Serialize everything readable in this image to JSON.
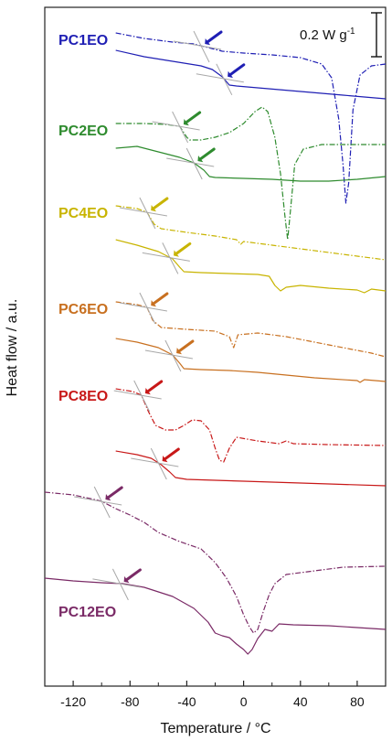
{
  "chart_data": {
    "type": "line",
    "title": "",
    "xlabel": "Temperature / °C",
    "ylabel": "Heat flow / a.u.",
    "xlim": [
      -140,
      100
    ],
    "xticks": [
      -120,
      -80,
      -40,
      0,
      40,
      80
    ],
    "xtick_labels": [
      "-120",
      "-80",
      "-40",
      "0",
      "40",
      "80"
    ],
    "y_axis_ticks": false,
    "grid": false,
    "scale_bar": {
      "label": "0.2 W g",
      "superscript": "-1"
    },
    "series": [
      {
        "name": "PC1EO",
        "color": "#1f1fb4",
        "traces": [
          {
            "style": "dashdot",
            "x_range": [
              -90,
              100
            ],
            "glass_transition_x": -30,
            "points": [
              [
                -90,
                36
              ],
              [
                -70,
                42
              ],
              [
                -50,
                46
              ],
              [
                -35,
                48
              ],
              [
                -25,
                52
              ],
              [
                -15,
                56
              ],
              [
                0,
                58
              ],
              [
                20,
                60
              ],
              [
                40,
                63
              ],
              [
                55,
                70
              ],
              [
                62,
                85
              ],
              [
                67,
                130
              ],
              [
                70,
                180
              ],
              [
                72,
                222
              ],
              [
                74,
                200
              ],
              [
                77,
                120
              ],
              [
                82,
                82
              ],
              [
                90,
                72
              ],
              [
                100,
                70
              ]
            ]
          },
          {
            "style": "solid",
            "x_range": [
              -90,
              100
            ],
            "glass_transition_x": -14,
            "points": [
              [
                -90,
                55
              ],
              [
                -70,
                62
              ],
              [
                -50,
                67
              ],
              [
                -30,
                72
              ],
              [
                -22,
                76
              ],
              [
                -15,
                84
              ],
              [
                -10,
                93
              ],
              [
                -5,
                94
              ],
              [
                10,
                96
              ],
              [
                40,
                100
              ],
              [
                70,
                104
              ],
              [
                100,
                108
              ]
            ]
          }
        ]
      },
      {
        "name": "PC2EO",
        "color": "#2e8b2e",
        "traces": [
          {
            "style": "dashdot",
            "x_range": [
              -90,
              100
            ],
            "glass_transition_x": -45,
            "points": [
              [
                -90,
                135
              ],
              [
                -70,
                135
              ],
              [
                -55,
                136
              ],
              [
                -45,
                138
              ],
              [
                -40,
                150
              ],
              [
                -38,
                153
              ],
              [
                -30,
                153
              ],
              [
                -20,
                150
              ],
              [
                -10,
                145
              ],
              [
                0,
                135
              ],
              [
                8,
                122
              ],
              [
                13,
                117
              ],
              [
                17,
                122
              ],
              [
                22,
                150
              ],
              [
                26,
                190
              ],
              [
                29,
                235
              ],
              [
                31,
                262
              ],
              [
                33,
                230
              ],
              [
                36,
                180
              ],
              [
                42,
                163
              ],
              [
                55,
                158
              ],
              [
                70,
                158
              ],
              [
                100,
                158
              ]
            ]
          },
          {
            "style": "solid",
            "x_range": [
              -90,
              100
            ],
            "glass_transition_x": -35,
            "points": [
              [
                -90,
                162
              ],
              [
                -75,
                160
              ],
              [
                -60,
                166
              ],
              [
                -45,
                172
              ],
              [
                -35,
                178
              ],
              [
                -28,
                186
              ],
              [
                -24,
                193
              ],
              [
                -20,
                194
              ],
              [
                0,
                195
              ],
              [
                20,
                196
              ],
              [
                40,
                198
              ],
              [
                60,
                198
              ],
              [
                80,
                196
              ],
              [
                100,
                193
              ]
            ]
          }
        ]
      },
      {
        "name": "PC4EO",
        "color": "#c8b400",
        "traces": [
          {
            "style": "dashdot",
            "x_range": [
              -90,
              100
            ],
            "glass_transition_x": -68,
            "points": [
              [
                -90,
                225
              ],
              [
                -75,
                228
              ],
              [
                -68,
                232
              ],
              [
                -63,
                245
              ],
              [
                -58,
                250
              ],
              [
                -40,
                254
              ],
              [
                -20,
                258
              ],
              [
                -5,
                262
              ],
              [
                -2,
                267
              ],
              [
                0,
                264
              ],
              [
                20,
                268
              ],
              [
                40,
                272
              ],
              [
                60,
                276
              ],
              [
                80,
                280
              ],
              [
                100,
                284
              ]
            ]
          },
          {
            "style": "solid",
            "x_range": [
              -90,
              100
            ],
            "glass_transition_x": -52,
            "points": [
              [
                -90,
                262
              ],
              [
                -75,
                268
              ],
              [
                -60,
                275
              ],
              [
                -50,
                283
              ],
              [
                -45,
                292
              ],
              [
                -42,
                297
              ],
              [
                -30,
                298
              ],
              [
                -10,
                299
              ],
              [
                10,
                300
              ],
              [
                18,
                302
              ],
              [
                22,
                312
              ],
              [
                26,
                318
              ],
              [
                30,
                314
              ],
              [
                40,
                312
              ],
              [
                60,
                315
              ],
              [
                80,
                317
              ],
              [
                85,
                320
              ],
              [
                90,
                316
              ],
              [
                100,
                318
              ]
            ]
          }
        ]
      },
      {
        "name": "PC6EO",
        "color": "#c87020",
        "traces": [
          {
            "style": "dashdot",
            "x_range": [
              -90,
              100
            ],
            "glass_transition_x": -68,
            "points": [
              [
                -90,
                330
              ],
              [
                -75,
                333
              ],
              [
                -68,
                336
              ],
              [
                -64,
                350
              ],
              [
                -58,
                358
              ],
              [
                -40,
                360
              ],
              [
                -20,
                362
              ],
              [
                -10,
                368
              ],
              [
                -7,
                380
              ],
              [
                -4,
                366
              ],
              [
                10,
                364
              ],
              [
                30,
                368
              ],
              [
                50,
                374
              ],
              [
                70,
                380
              ],
              [
                90,
                386
              ],
              [
                100,
                390
              ]
            ]
          },
          {
            "style": "solid",
            "x_range": [
              -90,
              100
            ],
            "glass_transition_x": -50,
            "points": [
              [
                -90,
                370
              ],
              [
                -75,
                374
              ],
              [
                -60,
                380
              ],
              [
                -50,
                388
              ],
              [
                -45,
                397
              ],
              [
                -42,
                403
              ],
              [
                -30,
                404
              ],
              [
                -10,
                405
              ],
              [
                10,
                407
              ],
              [
                30,
                410
              ],
              [
                50,
                413
              ],
              [
                80,
                416
              ],
              [
                82,
                418
              ],
              [
                85,
                415
              ],
              [
                100,
                417
              ]
            ]
          }
        ]
      },
      {
        "name": "PC8EO",
        "color": "#c81818",
        "traces": [
          {
            "style": "dashdot",
            "x_range": [
              -90,
              100
            ],
            "glass_transition_x": -72,
            "points": [
              [
                -90,
                425
              ],
              [
                -78,
                428
              ],
              [
                -72,
                432
              ],
              [
                -67,
                450
              ],
              [
                -62,
                465
              ],
              [
                -55,
                470
              ],
              [
                -48,
                470
              ],
              [
                -42,
                465
              ],
              [
                -36,
                459
              ],
              [
                -30,
                460
              ],
              [
                -24,
                470
              ],
              [
                -20,
                490
              ],
              [
                -17,
                503
              ],
              [
                -14,
                505
              ],
              [
                -10,
                490
              ],
              [
                -5,
                478
              ],
              [
                10,
                482
              ],
              [
                25,
                485
              ],
              [
                30,
                482
              ],
              [
                35,
                485
              ],
              [
                60,
                486
              ],
              [
                100,
                487
              ]
            ]
          },
          {
            "style": "solid",
            "x_range": [
              -90,
              100
            ],
            "glass_transition_x": -60,
            "points": [
              [
                -90,
                493
              ],
              [
                -75,
                497
              ],
              [
                -65,
                501
              ],
              [
                -58,
                508
              ],
              [
                -52,
                516
              ],
              [
                -48,
                522
              ],
              [
                -40,
                524
              ],
              [
                -20,
                525
              ],
              [
                0,
                526
              ],
              [
                20,
                527
              ],
              [
                60,
                529
              ],
              [
                100,
                531
              ]
            ]
          }
        ]
      },
      {
        "name": "PC12EO",
        "color": "#7a2a66",
        "traces": [
          {
            "style": "dashdot",
            "x_range": [
              -140,
              100
            ],
            "glass_transition_x": -100,
            "points": [
              [
                -140,
                538
              ],
              [
                -120,
                541
              ],
              [
                -105,
                546
              ],
              [
                -100,
                548
              ],
              [
                -90,
                556
              ],
              [
                -80,
                563
              ],
              [
                -70,
                571
              ],
              [
                -60,
                582
              ],
              [
                -45,
                592
              ],
              [
                -30,
                600
              ],
              [
                -20,
                615
              ],
              [
                -12,
                632
              ],
              [
                -5,
                652
              ],
              [
                0,
                672
              ],
              [
                4,
                685
              ],
              [
                7,
                692
              ],
              [
                10,
                688
              ],
              [
                14,
                668
              ],
              [
                18,
                650
              ],
              [
                22,
                638
              ],
              [
                30,
                628
              ],
              [
                50,
                624
              ],
              [
                70,
                620
              ],
              [
                100,
                619
              ]
            ]
          },
          {
            "style": "solid",
            "x_range": [
              -140,
              100
            ],
            "glass_transition_x": -87,
            "points": [
              [
                -140,
                632
              ],
              [
                -120,
                635
              ],
              [
                -100,
                637
              ],
              [
                -85,
                638
              ],
              [
                -70,
                642
              ],
              [
                -50,
                652
              ],
              [
                -35,
                665
              ],
              [
                -25,
                680
              ],
              [
                -20,
                692
              ],
              [
                -15,
                695
              ],
              [
                -10,
                697
              ],
              [
                -5,
                704
              ],
              [
                0,
                710
              ],
              [
                3,
                715
              ],
              [
                6,
                710
              ],
              [
                10,
                698
              ],
              [
                15,
                688
              ],
              [
                20,
                690
              ],
              [
                25,
                682
              ],
              [
                35,
                683
              ],
              [
                60,
                684
              ],
              [
                80,
                686
              ],
              [
                100,
                688
              ]
            ]
          }
        ]
      }
    ]
  }
}
